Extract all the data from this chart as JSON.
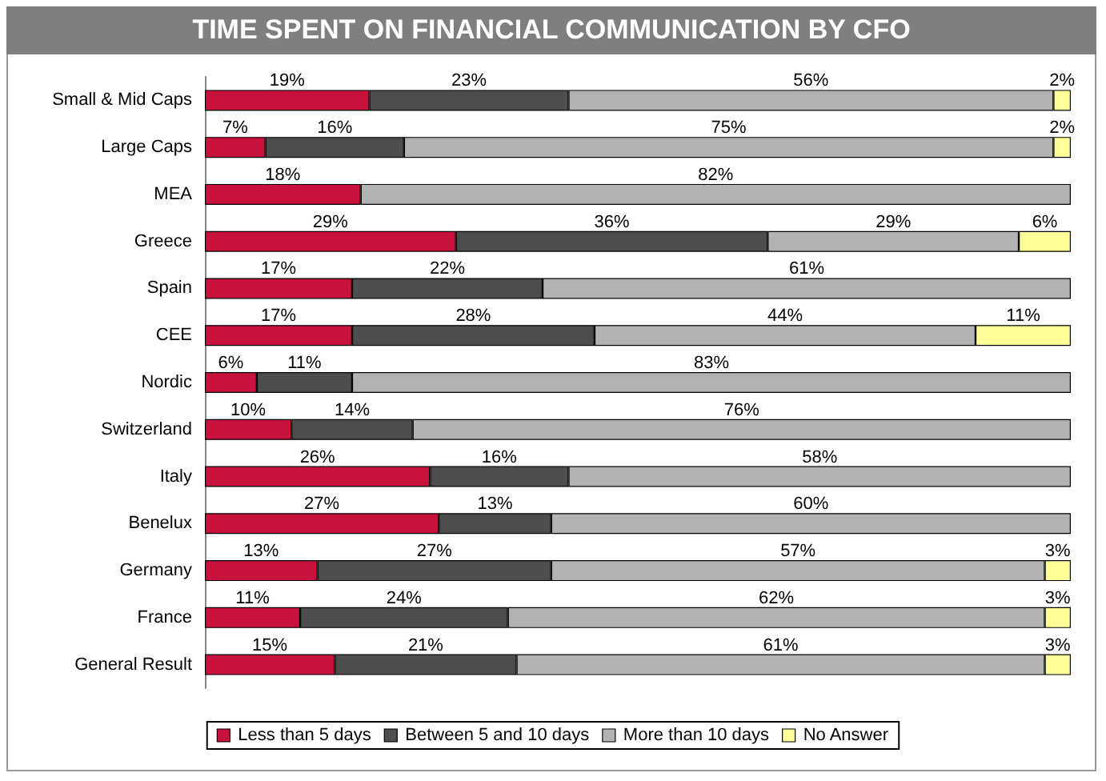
{
  "chart_data": {
    "type": "bar",
    "orientation": "horizontal",
    "stacked": true,
    "title": "TIME SPENT ON FINANCIAL COMMUNICATION BY CFO",
    "categories": [
      "Small & Mid Caps",
      "Large Caps",
      "MEA",
      "Greece",
      "Spain",
      "CEE",
      "Nordic",
      "Switzerland",
      "Italy",
      "Benelux",
      "Germany",
      "France",
      "General Result"
    ],
    "series": [
      {
        "name": "Less than 5 days",
        "color": "#c8123e",
        "values": [
          19,
          7,
          18,
          29,
          17,
          17,
          6,
          10,
          26,
          27,
          13,
          11,
          15
        ],
        "value_labels": [
          "19%",
          "7%",
          "18%",
          "29%",
          "17%",
          "17%",
          "6%",
          "10%",
          "26%",
          "27%",
          "13%",
          "11%",
          "15%"
        ]
      },
      {
        "name": "Between 5 and 10 days",
        "color": "#4d4d4d",
        "values": [
          23,
          16,
          null,
          36,
          22,
          28,
          11,
          14,
          16,
          13,
          27,
          24,
          21
        ],
        "value_labels": [
          "23%",
          "16%",
          null,
          "36%",
          "22%",
          "28%",
          "11%",
          "14%",
          "16%",
          "13%",
          "27%",
          "24%",
          "21%"
        ]
      },
      {
        "name": "More than 10 days",
        "color": "#b2b2b2",
        "values": [
          56,
          75,
          82,
          29,
          61,
          44,
          83,
          76,
          58,
          60,
          57,
          62,
          61
        ],
        "value_labels": [
          "56%",
          "75%",
          "82%",
          "29%",
          "61%",
          "44%",
          "83%",
          "76%",
          "58%",
          "60%",
          "57%",
          "62%",
          "61%"
        ]
      },
      {
        "name": "No Answer",
        "color": "#ffff99",
        "values": [
          2,
          2,
          null,
          6,
          null,
          11,
          null,
          null,
          null,
          null,
          3,
          3,
          3
        ],
        "value_labels": [
          "2%",
          "2%",
          null,
          "6%",
          null,
          "11%",
          null,
          null,
          null,
          null,
          "3%",
          "3%",
          "3%"
        ]
      }
    ],
    "legend": "bottom",
    "grid": false
  }
}
